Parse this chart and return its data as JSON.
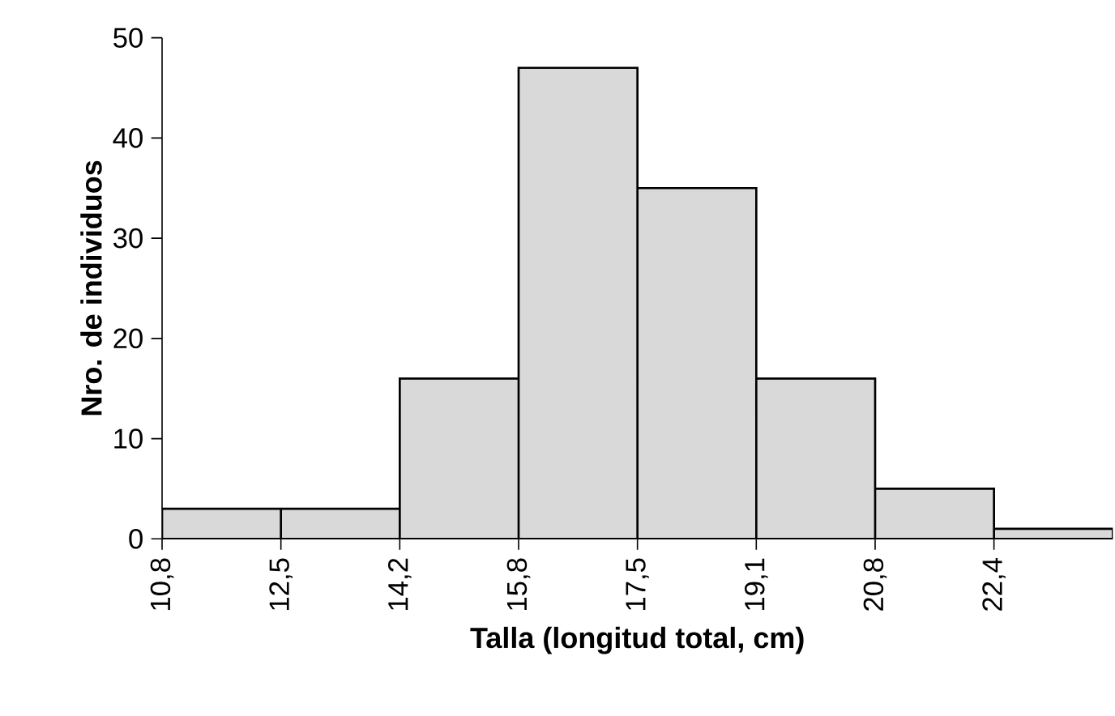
{
  "chart_data": {
    "type": "bar",
    "xlabel": "Talla (longitud total, cm)",
    "ylabel": "Nro. de individuos",
    "categories": [
      "10,8",
      "12,5",
      "14,2",
      "15,8",
      "17,5",
      "19,1",
      "20,8",
      "22,4"
    ],
    "values": [
      3,
      3,
      16,
      47,
      35,
      16,
      5,
      1
    ],
    "color": "#d9d9d9",
    "ylim": [
      0,
      50
    ],
    "yticks": [
      0,
      10,
      20,
      30,
      40,
      50
    ],
    "grid": false
  }
}
